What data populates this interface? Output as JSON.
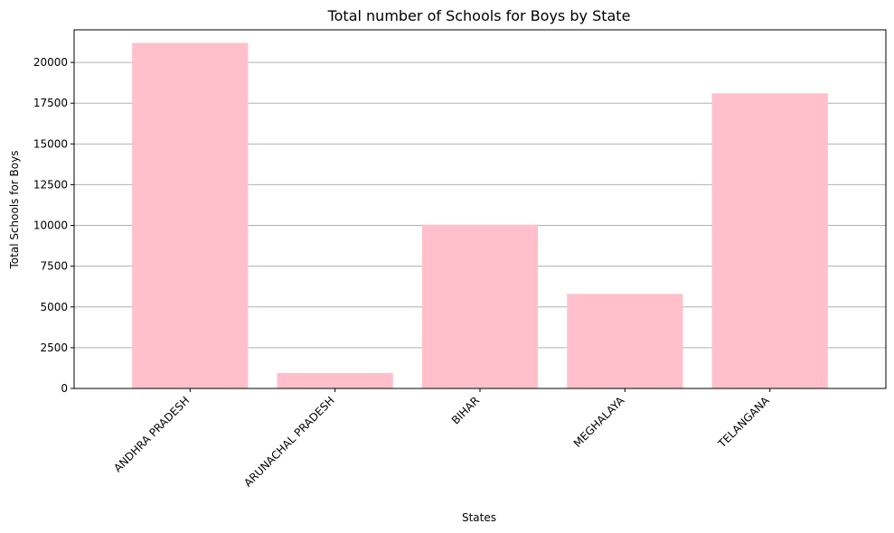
{
  "chart_data": {
    "type": "bar",
    "title": "Total number of Schools for Boys by State",
    "xlabel": "States",
    "ylabel": "Total Schools for Boys",
    "categories": [
      "ANDHRA PRADESH",
      "ARUNACHAL PRADESH",
      "BIHAR",
      "MEGHALAYA",
      "TELANGANA"
    ],
    "values": [
      21200,
      950,
      10050,
      5800,
      18100
    ],
    "ylim": [
      0,
      22000
    ],
    "yticks": [
      0,
      2500,
      5000,
      7500,
      10000,
      12500,
      15000,
      17500,
      20000
    ],
    "grid": "y",
    "x_tick_rotation": 45,
    "bar_color": "#ffc0cb",
    "grid_color": "#b0b0b0",
    "axis_color": "#000000"
  }
}
